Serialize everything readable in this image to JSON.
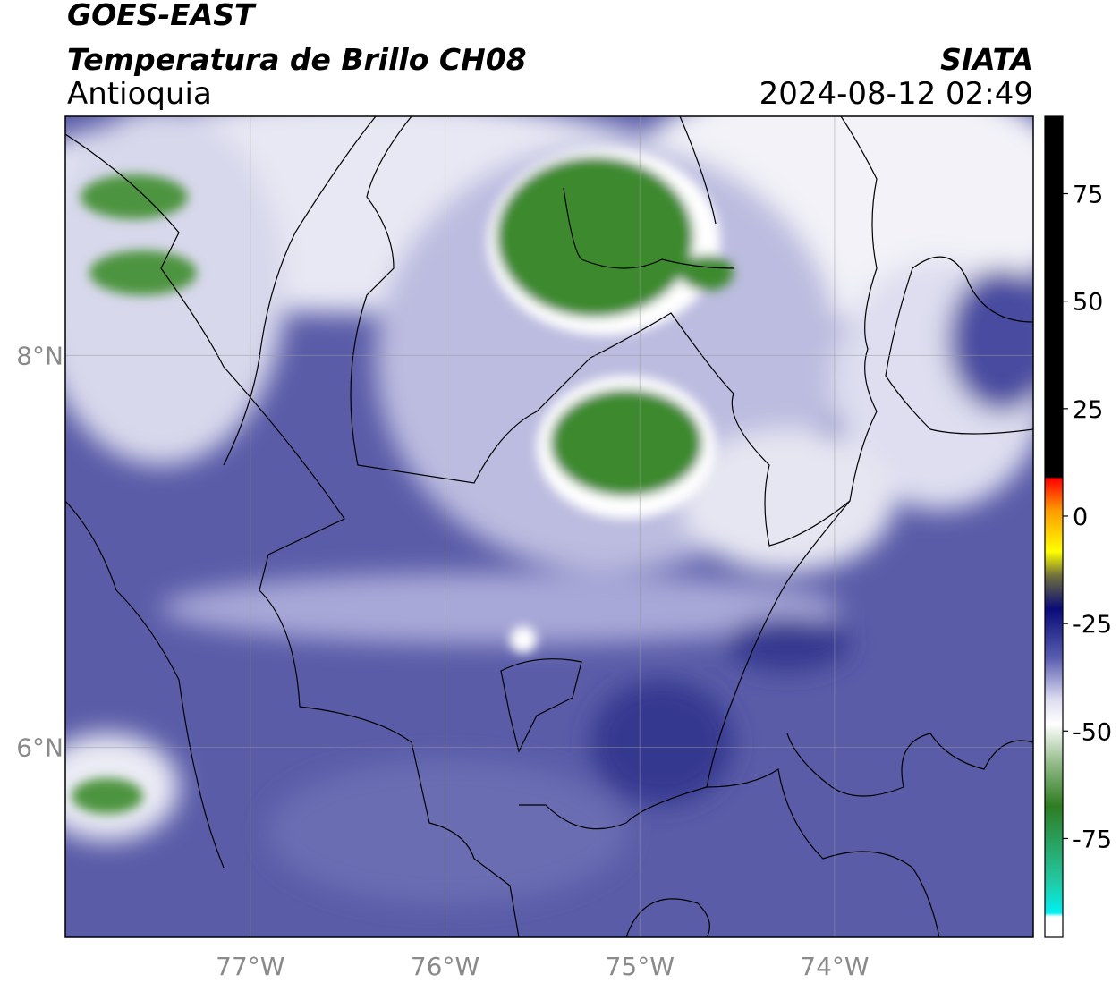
{
  "header": {
    "satellite": "GOES-EAST",
    "product": "Temperatura de Brillo CH08",
    "region": "Antioquia",
    "source": "SIATA",
    "datetime": "2024-08-12 02:49"
  },
  "map": {
    "lonlim": [
      -77.95,
      -72.98
    ],
    "latlim": [
      5.03,
      9.22
    ],
    "lon_ticks": [
      {
        "value": -77,
        "label": "77°W"
      },
      {
        "value": -76,
        "label": "76°W"
      },
      {
        "value": -75,
        "label": "75°W"
      },
      {
        "value": -74,
        "label": "74°W"
      }
    ],
    "lat_ticks": [
      {
        "value": 8,
        "label": "8°N"
      },
      {
        "value": 6,
        "label": "6°N"
      }
    ]
  },
  "colorbar": {
    "lim": [
      -98,
      93
    ],
    "ticks": [
      75,
      50,
      25,
      0,
      -25,
      -50,
      -75
    ]
  }
}
